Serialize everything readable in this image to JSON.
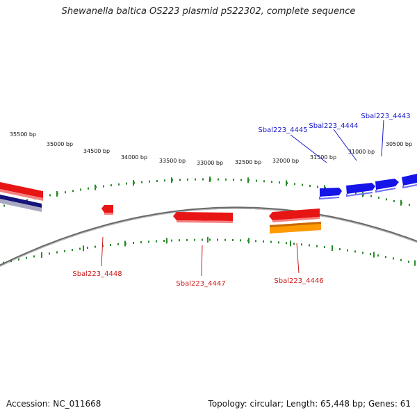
{
  "title": "Shewanella baltica OS223 plasmid pS22302, complete sequence",
  "footer": {
    "accession": "Accession: NC_011668",
    "summary": "Topology: circular; Length: 65,448 bp; Genes: 61"
  },
  "scale": {
    "tick_labels": [
      "35500 bp",
      "35000 bp",
      "34500 bp",
      "34000 bp",
      "33500 bp",
      "33000 bp",
      "32500 bp",
      "32000 bp",
      "31500 bp",
      "31000 bp",
      "30500 bp"
    ]
  },
  "genes": {
    "forward": [
      {
        "label": "Sbal223_4445",
        "color": "#1515e8"
      },
      {
        "label": "Sbal223_4444",
        "color": "#1515e8"
      },
      {
        "label": "Sbal223_4443",
        "color": "#1515e8"
      }
    ],
    "reverse": [
      {
        "label": "Sbal223_4448",
        "color": "#e81515"
      },
      {
        "label": "Sbal223_4447",
        "color": "#e81515"
      },
      {
        "label": "Sbal223_4446",
        "color": "#e81515"
      }
    ]
  },
  "colors": {
    "backbone": "#888888",
    "tick": "#2a8a2a",
    "forward_label": "#1a1acc",
    "reverse_label": "#cc1a1a",
    "cds_red": "#e81515",
    "cds_blue": "#1515e8",
    "orange": "#ff9a00",
    "navy": "#14147a"
  }
}
